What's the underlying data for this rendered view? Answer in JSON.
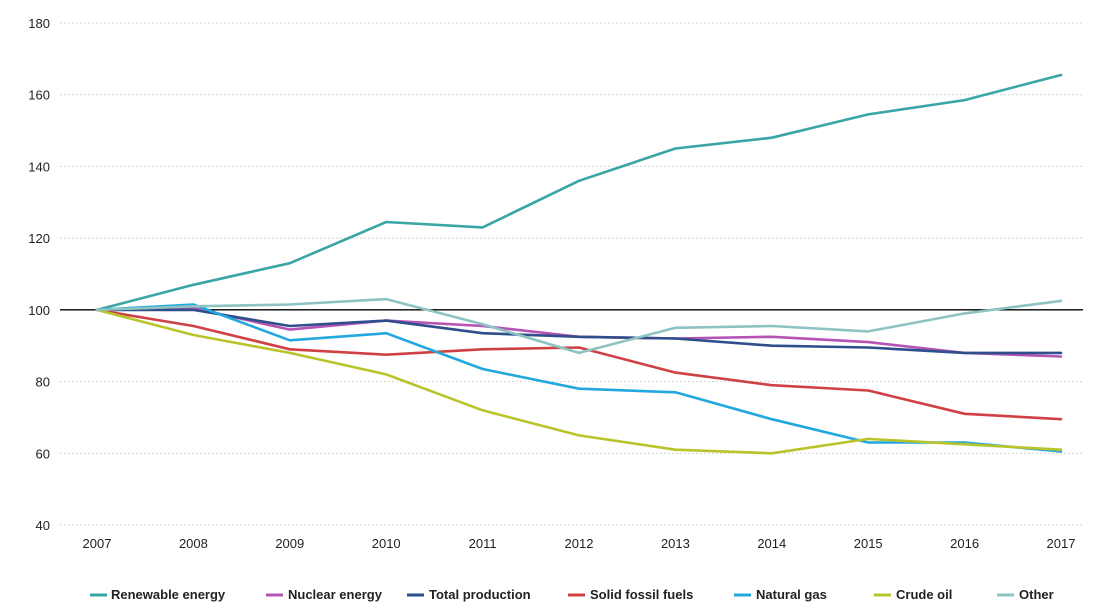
{
  "chart_data": {
    "type": "line",
    "title": "",
    "xlabel": "",
    "ylabel": "",
    "x": [
      "2007",
      "2008",
      "2009",
      "2010",
      "2011",
      "2012",
      "2013",
      "2014",
      "2015",
      "2016",
      "2017"
    ],
    "ylim": [
      40,
      180
    ],
    "yticks": [
      40,
      60,
      80,
      100,
      120,
      140,
      160,
      180
    ],
    "grid": true,
    "reference_line": 100,
    "legend_position": "bottom",
    "series": [
      {
        "name": "Renewable energy",
        "color": "#3aa5a5",
        "values": [
          100,
          107,
          113,
          124.5,
          123,
          136,
          145,
          148,
          154.5,
          158.5,
          165.5
        ]
      },
      {
        "name": "Nuclear energy",
        "color": "#b554b5",
        "values": [
          100,
          100.5,
          94.5,
          97,
          95.5,
          92.5,
          92,
          92.5,
          91,
          88,
          87
        ]
      },
      {
        "name": "Total production",
        "color": "#2e4f8c",
        "values": [
          100,
          100,
          95.5,
          97,
          93.5,
          92.5,
          92,
          90,
          89.5,
          88,
          88
        ]
      },
      {
        "name": "Solid fossil fuels",
        "color": "#d04143",
        "values": [
          100,
          95.5,
          89,
          87.5,
          89,
          89.5,
          82.5,
          79,
          77.5,
          71,
          69.5
        ]
      },
      {
        "name": "Natural gas",
        "color": "#22a8de",
        "values": [
          100,
          101.5,
          91.5,
          93.5,
          83.5,
          78,
          77,
          69.5,
          63,
          63,
          60.5
        ]
      },
      {
        "name": "Crude oil",
        "color": "#b9c42b",
        "values": [
          100,
          93,
          88,
          82,
          72,
          65,
          61,
          60,
          64,
          62.5,
          61
        ]
      },
      {
        "name": "Other",
        "color": "#8fc2c2",
        "values": [
          100,
          101,
          101.5,
          103,
          96,
          88,
          95,
          95.5,
          94,
          99,
          102.5
        ]
      }
    ]
  }
}
